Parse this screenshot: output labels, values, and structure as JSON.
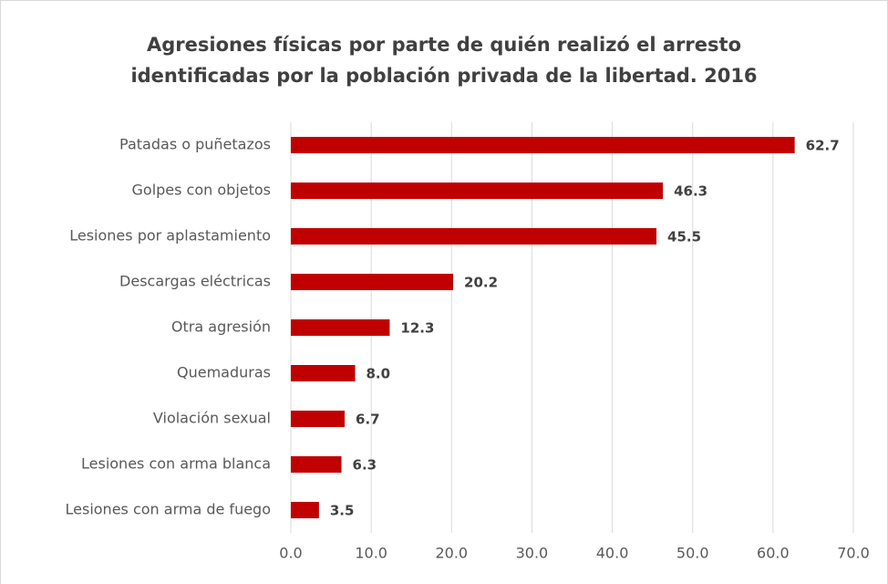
{
  "chart_data": {
    "type": "barh",
    "title": [
      "Agresiones físicas por parte de quién realizó el arresto",
      "identificadas por la población privada de la libertad. 2016"
    ],
    "categories": [
      "Patadas o puñetazos",
      "Golpes con objetos",
      "Lesiones por aplastamiento",
      "Descargas eléctricas",
      "Otra agresión",
      "Quemaduras",
      "Violación sexual",
      "Lesiones con arma blanca",
      "Lesiones con arma de fuego"
    ],
    "values": [
      62.7,
      46.3,
      45.5,
      20.2,
      12.3,
      8.0,
      6.7,
      6.3,
      3.5
    ],
    "value_labels": [
      "62.7",
      "46.3",
      "45.5",
      "20.2",
      "12.3",
      "8.0",
      "6.7",
      "6.3",
      "3.5"
    ],
    "color": "#c00000",
    "xlim": [
      0,
      70
    ],
    "xticks": [
      {
        "value": 0,
        "label": "0.0"
      },
      {
        "value": 10,
        "label": "10.0"
      },
      {
        "value": 20,
        "label": "20.0"
      },
      {
        "value": 30,
        "label": "30.0"
      },
      {
        "value": 40,
        "label": "40.0"
      },
      {
        "value": 50,
        "label": "50.0"
      },
      {
        "value": 60,
        "label": "60.0"
      },
      {
        "value": 70,
        "label": "70.0"
      }
    ],
    "grid": true
  }
}
